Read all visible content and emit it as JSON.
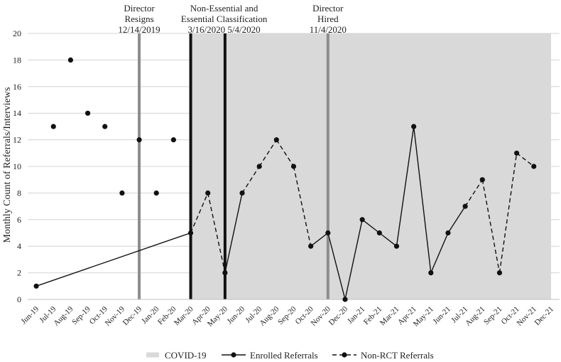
{
  "chart_data": {
    "type": "line",
    "ylabel": "Monthly Count of Referrals/Interviews",
    "xlabel": "",
    "ylim": [
      0,
      20
    ],
    "yticks": [
      0,
      2,
      4,
      6,
      8,
      10,
      12,
      14,
      16,
      18,
      20
    ],
    "grid": "horizontal",
    "legend_position": "bottom",
    "categories": [
      "Jun-19",
      "Jul-19",
      "Aug-19",
      "Sep-19",
      "Oct-19",
      "Nov-19",
      "Dec-19",
      "Jan-20",
      "Feb-20",
      "Mar-20",
      "Apr-20",
      "May-20",
      "Jun-20",
      "Jul-20",
      "Aug-20",
      "Sep-20",
      "Oct-20",
      "Nov-20",
      "Dec-20",
      "Jan-21",
      "Feb-21",
      "Mar-21",
      "Apr-21",
      "May-21",
      "Jun-21",
      "Jul-21",
      "Aug-21",
      "Sep-21",
      "Oct-21",
      "Nov-21",
      "Dec-21"
    ],
    "values": [
      1,
      13,
      18,
      14,
      13,
      8,
      12,
      8,
      12,
      5,
      8,
      2,
      8,
      10,
      12,
      10,
      4,
      5,
      0,
      6,
      5,
      4,
      13,
      2,
      5,
      7,
      9,
      2,
      11,
      10,
      null
    ],
    "series": [
      {
        "name": "Enrolled Referrals",
        "style": "solid",
        "segments": [
          [
            0,
            9
          ],
          [
            11,
            12
          ],
          [
            16,
            17
          ],
          [
            17,
            18
          ],
          [
            18,
            19
          ],
          [
            19,
            20
          ],
          [
            20,
            21
          ],
          [
            21,
            22
          ],
          [
            22,
            23
          ],
          [
            23,
            24
          ],
          [
            24,
            25
          ]
        ]
      },
      {
        "name": "Non-RCT Referrals",
        "style": "dashed",
        "segments": [
          [
            9,
            10
          ],
          [
            10,
            11
          ],
          [
            12,
            13
          ],
          [
            13,
            14
          ],
          [
            14,
            15
          ],
          [
            15,
            16
          ],
          [
            25,
            26
          ],
          [
            26,
            27
          ],
          [
            27,
            28
          ],
          [
            28,
            29
          ]
        ]
      }
    ],
    "shaded_region": {
      "name": "COVID-19",
      "start": "Mar-20",
      "end": "Dec-21",
      "color": "#d9d9d9"
    },
    "event_lines": [
      {
        "at": "Dec-19",
        "color": "#8c8c8c",
        "label_lines": [
          "Director",
          "Resigns",
          "12/14/2019"
        ]
      },
      {
        "at": "Mar-20",
        "color": "#111111",
        "label_lines": [
          "Non-Essential and",
          "Essential Classification",
          "3/16/2020 5/4/2020"
        ]
      },
      {
        "at": "May-20",
        "color": "#111111",
        "label_lines": []
      },
      {
        "at": "Nov-20",
        "color": "#8c8c8c",
        "label_lines": [
          "Director",
          "Hired",
          "11/4/2020"
        ]
      }
    ],
    "legend": [
      {
        "label": "COVID-19",
        "kind": "band",
        "color": "#d9d9d9"
      },
      {
        "label": "Enrolled Referrals",
        "kind": "solid-line"
      },
      {
        "label": "Non-RCT Referrals",
        "kind": "dashed-line"
      }
    ]
  }
}
